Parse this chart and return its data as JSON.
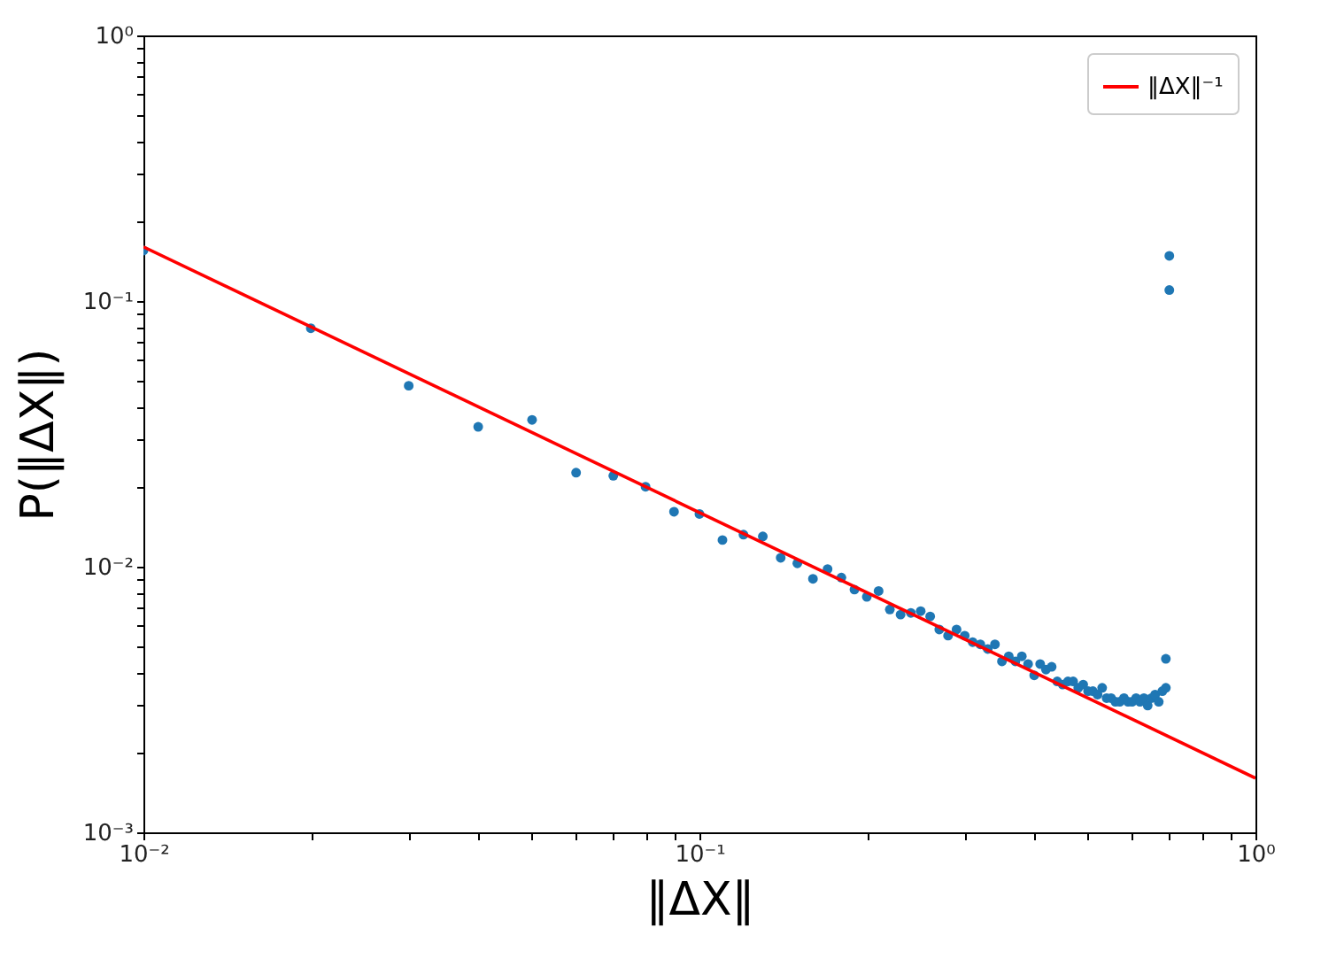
{
  "chart_data": {
    "type": "scatter",
    "xlabel": "‖ΔX‖",
    "ylabel": "P(‖ΔX‖)",
    "log": "xy",
    "grid": false,
    "legend": "top right",
    "xlim": [
      0.01,
      1
    ],
    "ylim": [
      0.001,
      1
    ],
    "xticks": [
      {
        "value": 0.01,
        "label": "10⁻²"
      },
      {
        "value": 0.02,
        "label": null
      },
      {
        "value": 0.03,
        "label": null
      },
      {
        "value": 0.04,
        "label": null
      },
      {
        "value": 0.05,
        "label": null
      },
      {
        "value": 0.06,
        "label": null
      },
      {
        "value": 0.07,
        "label": null
      },
      {
        "value": 0.08,
        "label": null
      },
      {
        "value": 0.09,
        "label": null
      },
      {
        "value": 0.1,
        "label": "10⁻¹"
      },
      {
        "value": 0.2,
        "label": null
      },
      {
        "value": 0.3,
        "label": null
      },
      {
        "value": 0.4,
        "label": null
      },
      {
        "value": 0.5,
        "label": null
      },
      {
        "value": 0.6,
        "label": null
      },
      {
        "value": 0.7,
        "label": null
      },
      {
        "value": 0.8,
        "label": null
      },
      {
        "value": 0.9,
        "label": null
      },
      {
        "value": 1,
        "label": "10⁰"
      }
    ],
    "yticks": [
      {
        "value": 0.001,
        "label": "10⁻³"
      },
      {
        "value": 0.002,
        "label": null
      },
      {
        "value": 0.003,
        "label": null
      },
      {
        "value": 0.004,
        "label": null
      },
      {
        "value": 0.005,
        "label": null
      },
      {
        "value": 0.006,
        "label": null
      },
      {
        "value": 0.007,
        "label": null
      },
      {
        "value": 0.008,
        "label": null
      },
      {
        "value": 0.009,
        "label": null
      },
      {
        "value": 0.01,
        "label": "10⁻²"
      },
      {
        "value": 0.02,
        "label": null
      },
      {
        "value": 0.03,
        "label": null
      },
      {
        "value": 0.04,
        "label": null
      },
      {
        "value": 0.05,
        "label": null
      },
      {
        "value": 0.06,
        "label": null
      },
      {
        "value": 0.07,
        "label": null
      },
      {
        "value": 0.08,
        "label": null
      },
      {
        "value": 0.09,
        "label": null
      },
      {
        "value": 0.1,
        "label": "10⁻¹"
      },
      {
        "value": 0.2,
        "label": null
      },
      {
        "value": 0.3,
        "label": null
      },
      {
        "value": 0.4,
        "label": null
      },
      {
        "value": 0.5,
        "label": null
      },
      {
        "value": 0.6,
        "label": null
      },
      {
        "value": 0.7,
        "label": null
      },
      {
        "value": 0.8,
        "label": null
      },
      {
        "value": 0.9,
        "label": null
      },
      {
        "value": 1,
        "label": "10⁰"
      }
    ],
    "series": [
      {
        "marker": "circle",
        "color": "#1f77b4",
        "x": [
          0.01,
          0.02,
          0.03,
          0.04,
          0.05,
          0.06,
          0.07,
          0.08,
          0.09,
          0.1,
          0.11,
          0.12,
          0.13,
          0.14,
          0.15,
          0.16,
          0.17,
          0.18,
          0.19,
          0.2,
          0.21,
          0.22,
          0.23,
          0.24,
          0.25,
          0.26,
          0.27,
          0.28,
          0.29,
          0.3,
          0.31,
          0.32,
          0.33,
          0.34,
          0.35,
          0.36,
          0.37,
          0.38,
          0.39,
          0.4,
          0.41,
          0.42,
          0.43,
          0.44,
          0.45,
          0.46,
          0.47,
          0.48,
          0.49,
          0.5,
          0.51,
          0.52,
          0.53,
          0.54,
          0.55,
          0.56,
          0.57,
          0.58,
          0.59,
          0.6,
          0.61,
          0.62,
          0.63,
          0.64,
          0.65,
          0.66,
          0.67,
          0.68,
          0.69,
          0.69,
          0.7,
          0.7
        ],
        "values": [
          0.155,
          0.079,
          0.048,
          0.0336,
          0.0357,
          0.0226,
          0.022,
          0.02,
          0.0161,
          0.0158,
          0.0126,
          0.0132,
          0.013,
          0.0108,
          0.0103,
          0.009,
          0.0098,
          0.0091,
          0.0082,
          0.0077,
          0.0081,
          0.0069,
          0.0066,
          0.0067,
          0.0068,
          0.0065,
          0.0058,
          0.0055,
          0.0058,
          0.0055,
          0.0052,
          0.0051,
          0.0049,
          0.0051,
          0.0044,
          0.0046,
          0.0044,
          0.0046,
          0.0043,
          0.0039,
          0.0043,
          0.0041,
          0.0042,
          0.0037,
          0.0036,
          0.0037,
          0.0037,
          0.0035,
          0.0036,
          0.0034,
          0.0034,
          0.0033,
          0.0035,
          0.0032,
          0.0032,
          0.0031,
          0.0031,
          0.0032,
          0.0031,
          0.0031,
          0.0032,
          0.0031,
          0.0032,
          0.003,
          0.0032,
          0.0033,
          0.0031,
          0.0034,
          0.0035,
          0.0045,
          0.11,
          0.148
        ]
      },
      {
        "type": "line",
        "name": "‖ΔX‖⁻¹",
        "color": "#ff0000",
        "x": [
          0.01,
          1
        ],
        "values": [
          0.16,
          0.0016
        ]
      }
    ]
  }
}
